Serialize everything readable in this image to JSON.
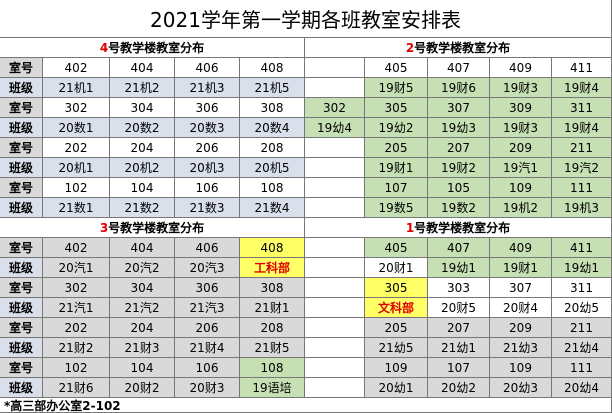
{
  "title": "2021学年第一学期各班教室安排表",
  "sections": [
    {
      "title": "4号教学楼教室分布",
      "rows": [
        {
          "label": "室号",
          "cells": [
            "402",
            "404",
            "406",
            "408"
          ]
        },
        {
          "label": "班级",
          "cells": [
            "21机1",
            "21机2",
            "21机3",
            "21机5"
          ]
        },
        {
          "label": "室号",
          "cells": [
            "302",
            "304",
            "306",
            "308"
          ]
        },
        {
          "label": "班级",
          "cells": [
            "20数1",
            "20数2",
            "20数3",
            "20数4"
          ]
        },
        {
          "label": "室号",
          "cells": [
            "202",
            "204",
            "206",
            "208"
          ]
        },
        {
          "label": "班级",
          "cells": [
            "20机1",
            "20机2",
            "20机3",
            "20机5"
          ]
        },
        {
          "label": "室号",
          "cells": [
            "102",
            "104",
            "106",
            "108"
          ]
        },
        {
          "label": "班级",
          "cells": [
            "21数1",
            "21数2",
            "21数3",
            "21数4"
          ]
        }
      ]
    },
    {
      "title": "2号教学楼教室分布",
      "rows": [
        {
          "cells": [
            null,
            "405",
            "407",
            "409",
            "411"
          ]
        },
        {
          "cells": [
            null,
            "19财5",
            "19财6",
            "19财3",
            "19财4"
          ]
        },
        {
          "cells": [
            "302",
            "305",
            "307",
            "309",
            "311"
          ]
        },
        {
          "cells": [
            "19幼4",
            "19幼2",
            "19幼3",
            "19财3",
            "19财4"
          ]
        },
        {
          "cells": [
            null,
            "205",
            "207",
            "209",
            "211"
          ]
        },
        {
          "cells": [
            null,
            "19财1",
            "19财2",
            "19汽1",
            "19汽2"
          ]
        },
        {
          "cells": [
            null,
            "107",
            "105",
            "109",
            "111"
          ]
        },
        {
          "cells": [
            null,
            "19数5",
            "19数2",
            "19机2",
            "19机3"
          ]
        }
      ]
    },
    {
      "title": "3号教学楼教室分布",
      "rows": [
        {
          "label": "室号",
          "cells": [
            "402",
            "404",
            "406",
            "408"
          ]
        },
        {
          "label": "班级",
          "cells": [
            "20汽1",
            "20汽2",
            "20汽3",
            "工科部"
          ]
        },
        {
          "label": "室号",
          "cells": [
            "302",
            "304",
            "306",
            "308"
          ]
        },
        {
          "label": "班级",
          "cells": [
            "21汽1",
            "21汽2",
            "21汽3",
            "21财1"
          ]
        },
        {
          "label": "室号",
          "cells": [
            "202",
            "204",
            "206",
            "208"
          ]
        },
        {
          "label": "班级",
          "cells": [
            "21财2",
            "21财3",
            "21财4",
            "21财5"
          ]
        },
        {
          "label": "室号",
          "cells": [
            "102",
            "104",
            "106",
            "108"
          ]
        },
        {
          "label": "班级",
          "cells": [
            "21财6",
            "20财2",
            "20财3",
            "19语培"
          ]
        }
      ]
    },
    {
      "title": "1号教学楼教室分布",
      "rows": [
        {
          "cells": [
            null,
            "405",
            "407",
            "409",
            "411"
          ]
        },
        {
          "cells": [
            null,
            "20财1",
            "19幼1",
            "19财1",
            "19幼1"
          ]
        },
        {
          "cells": [
            null,
            "305",
            "303",
            "307",
            "311"
          ]
        },
        {
          "cells": [
            null,
            "文科部",
            "20财5",
            "20财4",
            "20幼5"
          ]
        },
        {
          "cells": [
            null,
            "205",
            "207",
            "209",
            "211"
          ]
        },
        {
          "cells": [
            null,
            "21幼5",
            "21幼1",
            "21幼3",
            "21幼4"
          ]
        },
        {
          "cells": [
            null,
            "109",
            "107",
            "109",
            "111"
          ]
        },
        {
          "cells": [
            null,
            "20幼1",
            "20幼2",
            "20幼3",
            "20幼4"
          ]
        }
      ]
    }
  ],
  "footer": "*高三部办公室2-102"
}
